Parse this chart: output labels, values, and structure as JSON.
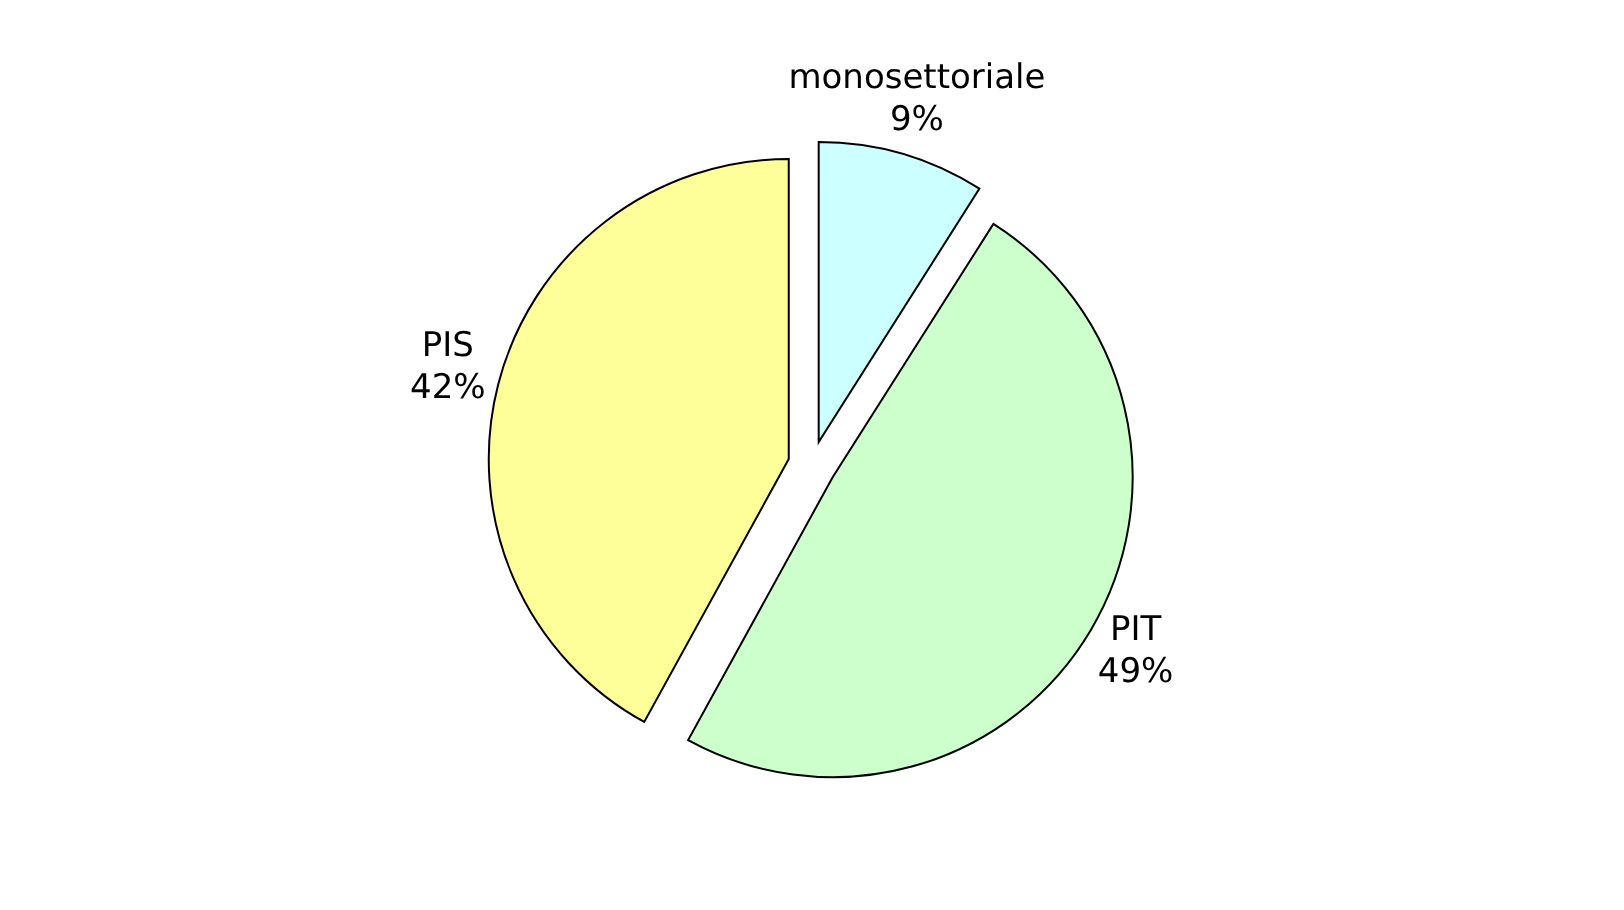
{
  "chart_data": {
    "type": "pie",
    "categories": [
      "monosettoriale",
      "PIT",
      "PIS"
    ],
    "values": [
      9,
      49,
      42
    ],
    "value_labels": [
      "9%",
      "49%",
      "42%"
    ],
    "colors": [
      "#ccffff",
      "#ccffcc",
      "#ffff99"
    ]
  }
}
